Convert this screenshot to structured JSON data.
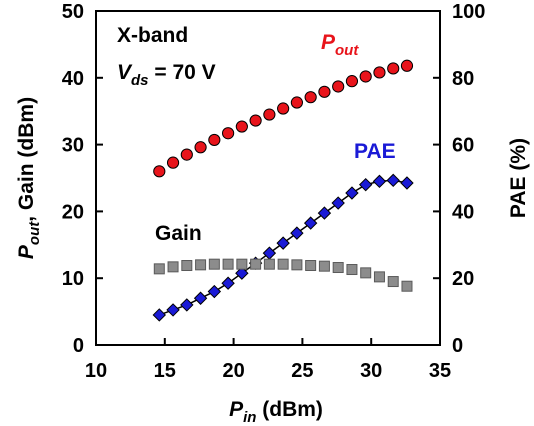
{
  "chart_data": {
    "type": "scatter",
    "xlabel": {
      "main": "P",
      "sub": "in",
      "rest": " (dBm)"
    },
    "ylabel_left": {
      "main": "P",
      "sub": "out",
      "rest": ", Gain (dBm)"
    },
    "ylabel_right": "PAE (%)",
    "xlim": [
      10,
      35
    ],
    "ylim_left": [
      0,
      50
    ],
    "ylim_right": [
      0,
      100
    ],
    "xticks": [
      "10",
      "15",
      "20",
      "25",
      "30",
      "35"
    ],
    "yticks_left": [
      "0",
      "10",
      "20",
      "30",
      "40",
      "50"
    ],
    "yticks_right": [
      "0",
      "20",
      "40",
      "60",
      "80",
      "100"
    ],
    "annotations": {
      "band": "X-band",
      "vds": {
        "main": "V",
        "sub": "ds",
        "rest": " = 70 V"
      },
      "pout": {
        "main": "P",
        "sub": "out"
      },
      "pae": "PAE",
      "gain": "Gain"
    },
    "colors": {
      "pout": "#e8141b",
      "pae": "#1a1ad6",
      "gain": "#8c8c8c"
    },
    "x": [
      14.6,
      15.6,
      16.6,
      17.6,
      18.6,
      19.6,
      20.6,
      21.6,
      22.6,
      23.6,
      24.6,
      25.6,
      26.6,
      27.6,
      28.6,
      29.6,
      30.6,
      31.6,
      32.6
    ],
    "series": [
      {
        "key": "pout",
        "axis": "left",
        "marker": "circle",
        "line": false,
        "values": [
          26.0,
          27.3,
          28.5,
          29.6,
          30.7,
          31.7,
          32.7,
          33.6,
          34.5,
          35.4,
          36.3,
          37.1,
          37.9,
          38.7,
          39.5,
          40.2,
          40.8,
          41.4,
          41.8
        ]
      },
      {
        "key": "pae",
        "axis": "right",
        "marker": "diamond",
        "line": true,
        "values": [
          9.0,
          10.5,
          12.0,
          14.0,
          16.0,
          18.5,
          21.5,
          24.5,
          27.5,
          30.5,
          33.5,
          36.5,
          39.5,
          42.5,
          45.5,
          48.0,
          49.0,
          49.3,
          48.5
        ]
      },
      {
        "key": "gain",
        "axis": "left",
        "marker": "square",
        "line": false,
        "values": [
          11.4,
          11.7,
          11.9,
          12.0,
          12.1,
          12.1,
          12.1,
          12.1,
          12.1,
          12.1,
          12.0,
          11.9,
          11.8,
          11.6,
          11.3,
          10.8,
          10.2,
          9.5,
          8.8
        ]
      }
    ]
  }
}
